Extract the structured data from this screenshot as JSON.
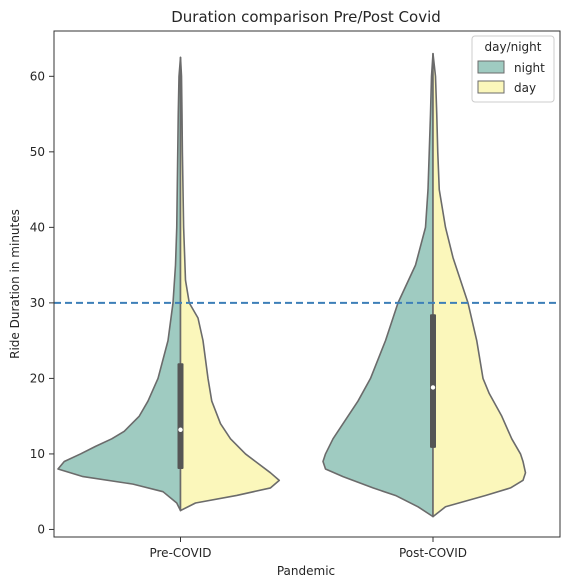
{
  "chart_data": {
    "type": "violin",
    "title": "Duration comparison Pre/Post Covid",
    "xlabel": "Pandemic",
    "ylabel": "Ride Duration in minutes",
    "categories": [
      "Pre-COVID",
      "Post-COVID"
    ],
    "ylim": [
      -1,
      66
    ],
    "yticks": [
      0,
      10,
      20,
      30,
      40,
      50,
      60
    ],
    "reference_line": {
      "y": 30,
      "style": "dashed",
      "color": "#3d7fb8"
    },
    "legend": {
      "title": "day/night",
      "position": "top-right"
    },
    "colors": {
      "night": "#9fcbc1",
      "day": "#fbf7bb",
      "outline": "#6b6b6b",
      "box": "#555555",
      "median": "#ffffff"
    },
    "series": [
      {
        "name": "night",
        "violins": [
          {
            "category": "Pre-COVID",
            "profile": [
              [
                2.5,
                0
              ],
              [
                3.5,
                0.03
              ],
              [
                5,
                0.14
              ],
              [
                6,
                0.38
              ],
              [
                7,
                0.78
              ],
              [
                8,
                0.98
              ],
              [
                9,
                0.93
              ],
              [
                10,
                0.8
              ],
              [
                11,
                0.68
              ],
              [
                12,
                0.55
              ],
              [
                13,
                0.45
              ],
              [
                15,
                0.33
              ],
              [
                17,
                0.26
              ],
              [
                20,
                0.18
              ],
              [
                25,
                0.1
              ],
              [
                30,
                0.06
              ],
              [
                35,
                0.04
              ],
              [
                40,
                0.03
              ],
              [
                50,
                0.022
              ],
              [
                55,
                0.018
              ],
              [
                60,
                0.012
              ],
              [
                62.5,
                0
              ]
            ]
          },
          {
            "category": "Post-COVID",
            "profile": [
              [
                1.7,
                0
              ],
              [
                3,
                0.12
              ],
              [
                4.5,
                0.3
              ],
              [
                5.5,
                0.48
              ],
              [
                7,
                0.72
              ],
              [
                8,
                0.86
              ],
              [
                9,
                0.88
              ],
              [
                10,
                0.86
              ],
              [
                12,
                0.8
              ],
              [
                14,
                0.72
              ],
              [
                17,
                0.6
              ],
              [
                20,
                0.5
              ],
              [
                25,
                0.38
              ],
              [
                30,
                0.28
              ],
              [
                35,
                0.14
              ],
              [
                40,
                0.06
              ],
              [
                45,
                0.04
              ],
              [
                50,
                0.03
              ],
              [
                55,
                0.02
              ],
              [
                60,
                0.012
              ],
              [
                63,
                0
              ]
            ]
          }
        ]
      },
      {
        "name": "day",
        "violins": [
          {
            "category": "Pre-COVID",
            "profile": [
              [
                2.5,
                0
              ],
              [
                3.5,
                0.12
              ],
              [
                4.5,
                0.45
              ],
              [
                5.5,
                0.72
              ],
              [
                6.5,
                0.79
              ],
              [
                7.5,
                0.72
              ],
              [
                9,
                0.6
              ],
              [
                10,
                0.52
              ],
              [
                12,
                0.4
              ],
              [
                14,
                0.32
              ],
              [
                17,
                0.25
              ],
              [
                20,
                0.22
              ],
              [
                25,
                0.18
              ],
              [
                28,
                0.14
              ],
              [
                30,
                0.07
              ],
              [
                33,
                0.04
              ],
              [
                40,
                0.025
              ],
              [
                50,
                0.015
              ],
              [
                55,
                0.012
              ],
              [
                60,
                0.008
              ],
              [
                62.5,
                0
              ]
            ]
          },
          {
            "category": "Post-COVID",
            "profile": [
              [
                1.7,
                0
              ],
              [
                3,
                0.1
              ],
              [
                4.5,
                0.42
              ],
              [
                5.5,
                0.62
              ],
              [
                6.5,
                0.72
              ],
              [
                7.5,
                0.74
              ],
              [
                9,
                0.72
              ],
              [
                10,
                0.7
              ],
              [
                12,
                0.63
              ],
              [
                15,
                0.55
              ],
              [
                18,
                0.45
              ],
              [
                20,
                0.4
              ],
              [
                25,
                0.35
              ],
              [
                30,
                0.28
              ],
              [
                33,
                0.22
              ],
              [
                36,
                0.16
              ],
              [
                40,
                0.1
              ],
              [
                45,
                0.05
              ],
              [
                50,
                0.038
              ],
              [
                55,
                0.03
              ],
              [
                60,
                0.02
              ],
              [
                63,
                0
              ]
            ]
          }
        ]
      }
    ],
    "box": [
      {
        "category": "Pre-COVID",
        "q1": 8,
        "median": 13.2,
        "q3": 22
      },
      {
        "category": "Post-COVID",
        "q1": 10.8,
        "median": 18.8,
        "q3": 28.5
      }
    ]
  }
}
